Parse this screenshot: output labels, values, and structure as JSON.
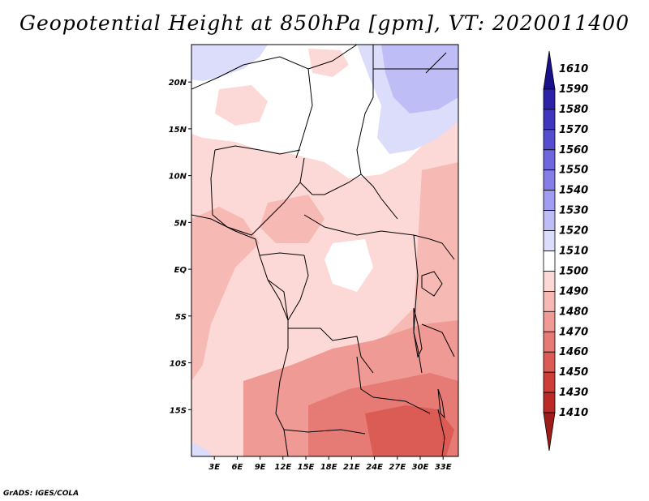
{
  "title": "Geopotential Height at 850hPa [gpm], VT: 2020011400",
  "credit": "GrADS: IGES/COLA",
  "map": {
    "variable": "Geopotential Height at 850hPa",
    "units": "gpm",
    "lat_range": [
      -20,
      24
    ],
    "lon_range": [
      0,
      35
    ],
    "lon_ticks": [
      {
        "value": 3,
        "label": "3E"
      },
      {
        "value": 6,
        "label": "6E"
      },
      {
        "value": 9,
        "label": "9E"
      },
      {
        "value": 12,
        "label": "12E"
      },
      {
        "value": 15,
        "label": "15E"
      },
      {
        "value": 18,
        "label": "18E"
      },
      {
        "value": 21,
        "label": "21E"
      },
      {
        "value": 24,
        "label": "24E"
      },
      {
        "value": 27,
        "label": "27E"
      },
      {
        "value": 30,
        "label": "30E"
      },
      {
        "value": 33,
        "label": "33E"
      }
    ],
    "lat_ticks": [
      {
        "value": 20,
        "label": "20N"
      },
      {
        "value": 15,
        "label": "15N"
      },
      {
        "value": 10,
        "label": "10N"
      },
      {
        "value": 5,
        "label": "5N"
      },
      {
        "value": 0,
        "label": "EQ"
      },
      {
        "value": -5,
        "label": "5S"
      },
      {
        "value": -10,
        "label": "10S"
      },
      {
        "value": -15,
        "label": "15S"
      }
    ]
  },
  "colorbar": {
    "levels": [
      "1610",
      "1590",
      "1580",
      "1570",
      "1560",
      "1550",
      "1540",
      "1530",
      "1520",
      "1510",
      "1500",
      "1490",
      "1480",
      "1470",
      "1460",
      "1450",
      "1430",
      "1410"
    ],
    "colors": [
      "#1a108a",
      "#2b22a8",
      "#3f36c0",
      "#554dd0",
      "#6d66dc",
      "#857ee6",
      "#a19df0",
      "#bebdf6",
      "#dcdcfb",
      "#ffffff",
      "#fcd9d6",
      "#f7b9b4",
      "#ef9a94",
      "#e67a74",
      "#db5b55",
      "#cd3e39",
      "#bb2a26",
      "#a01c19"
    ]
  }
}
